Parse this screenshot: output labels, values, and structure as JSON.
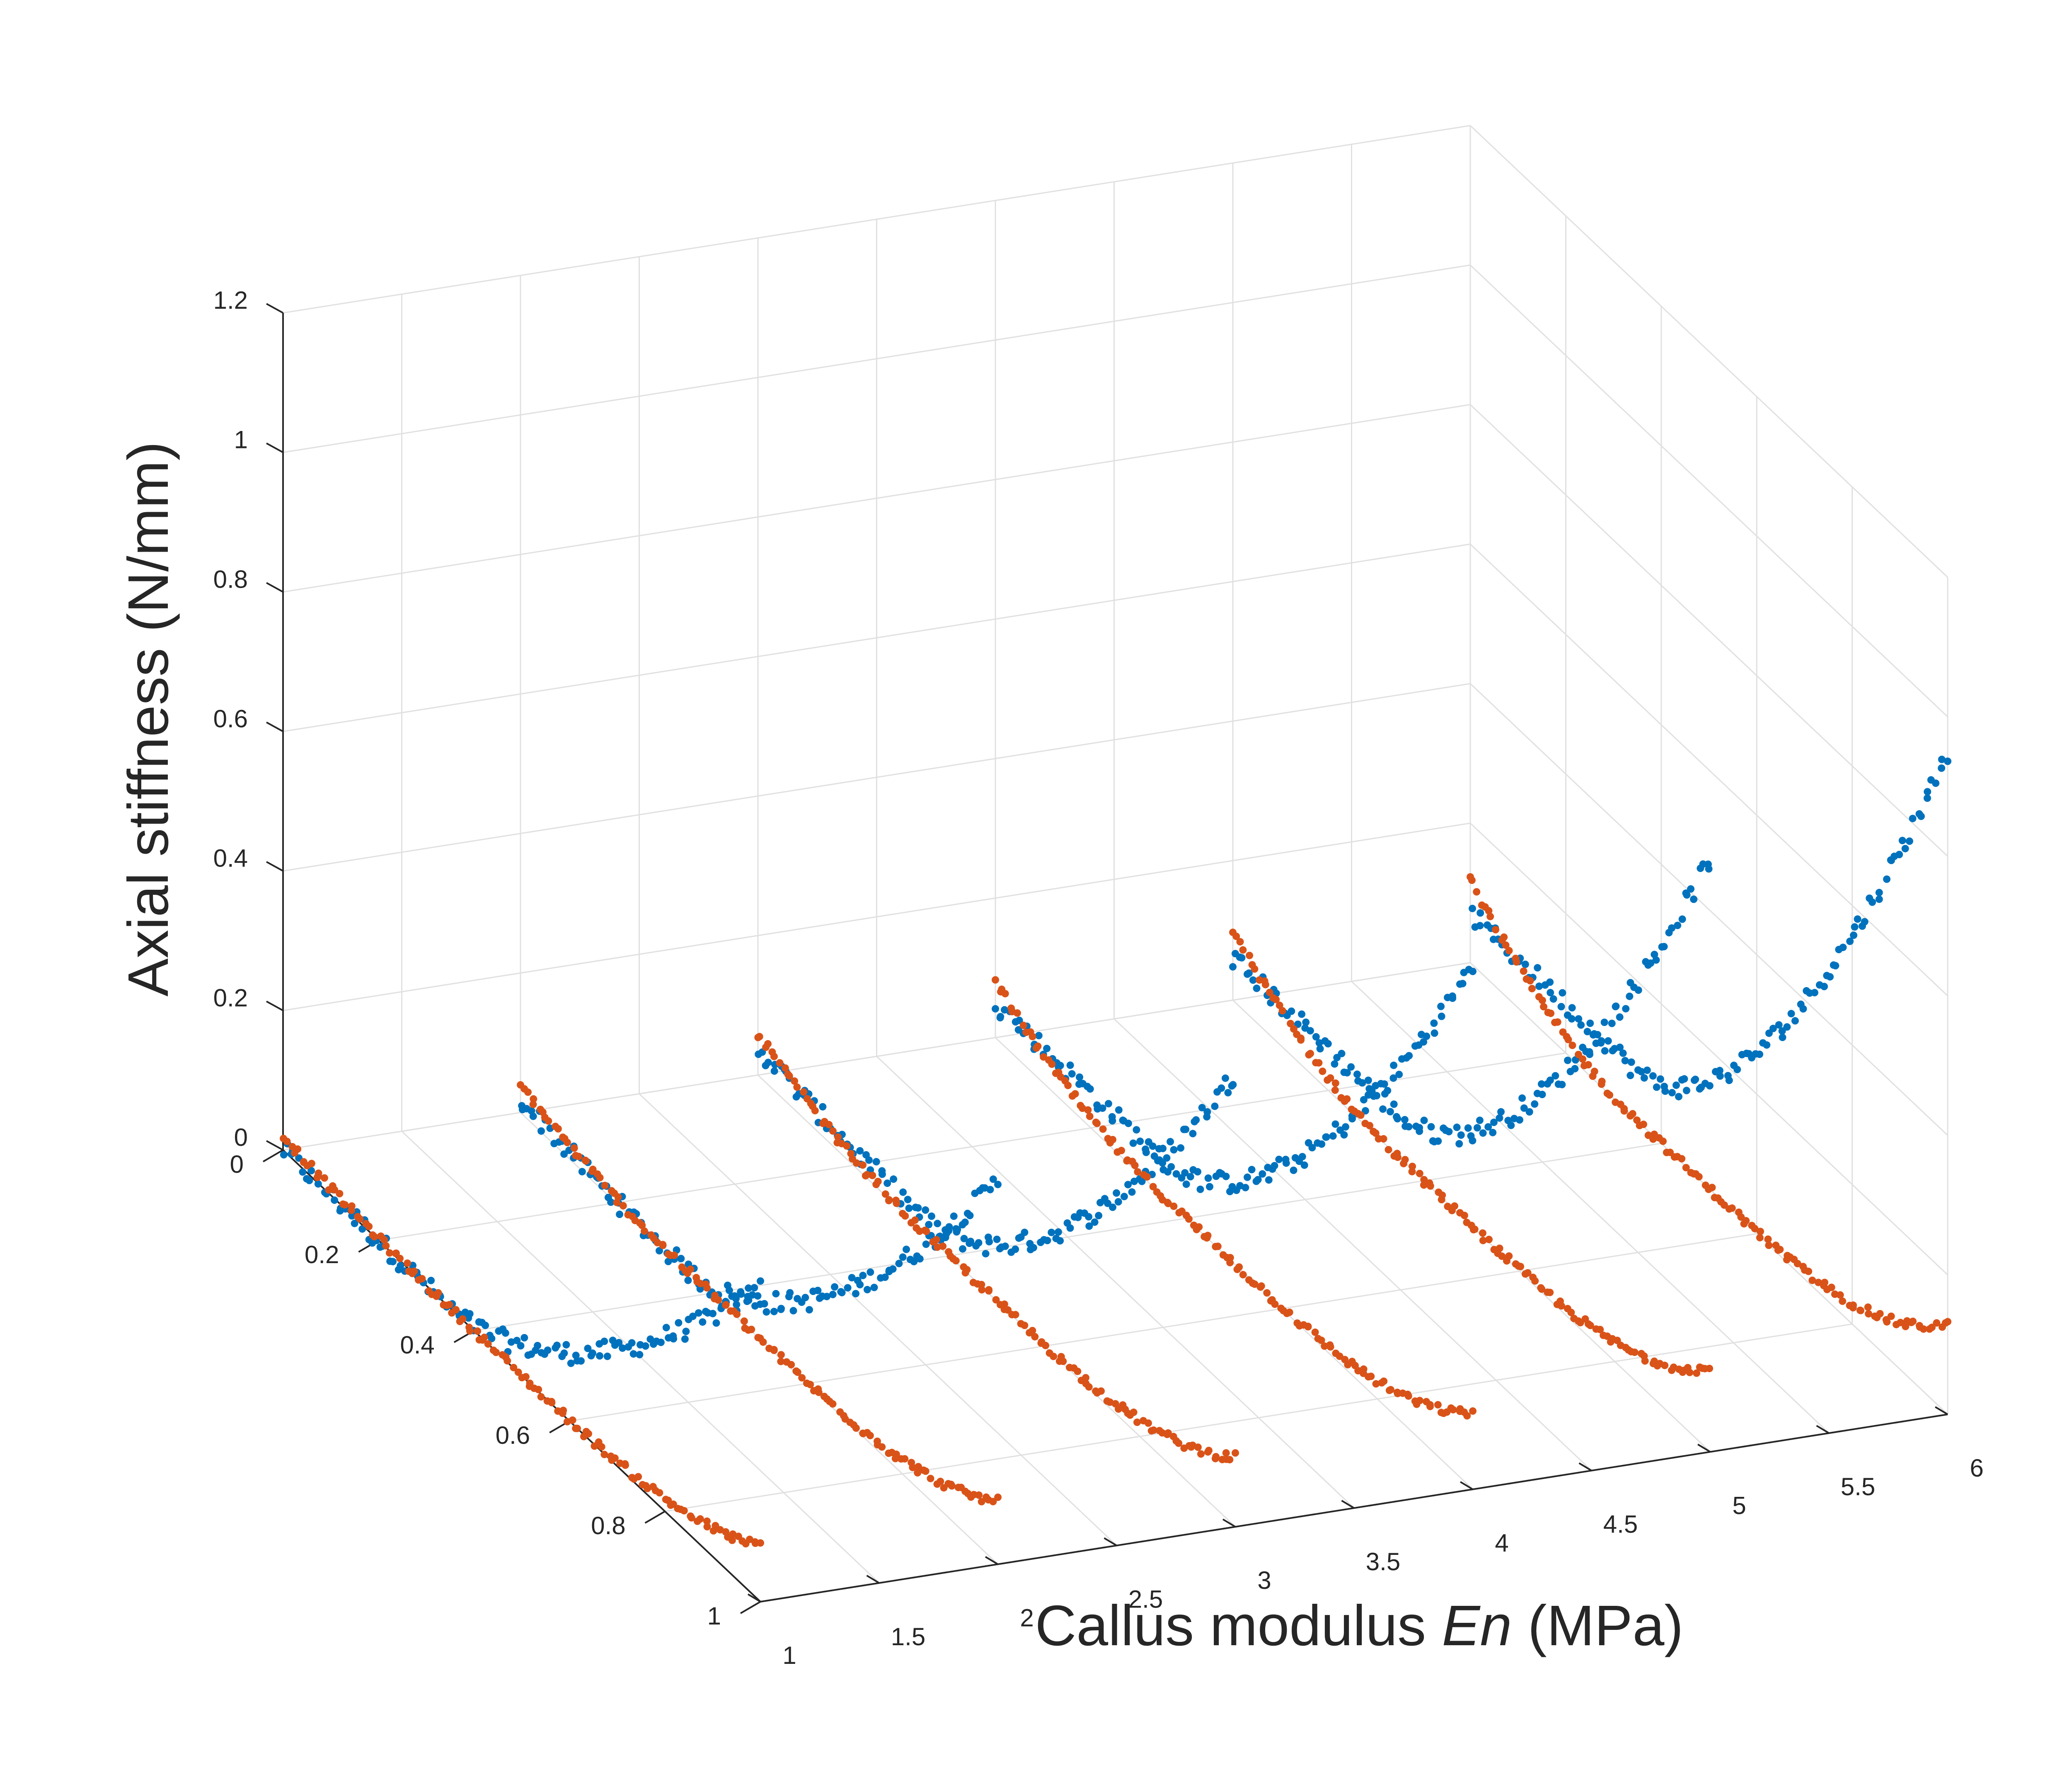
{
  "chart_data": {
    "type": "scatter",
    "title": "",
    "xlabel_prefix": "Callus modulus ",
    "xlabel_italic": "En",
    "xlabel_suffix": " (MPa)",
    "ylabel": "",
    "zlabel": "Axial stiffness (N/mm)",
    "xlim": [
      1,
      6
    ],
    "ylim": [
      0,
      1
    ],
    "zlim": [
      0,
      1.2
    ],
    "x_ticks": [
      "1",
      "1.5",
      "2",
      "2.5",
      "3",
      "3.5",
      "4",
      "4.5",
      "5",
      "5.5",
      "6"
    ],
    "y_ticks": [
      "0",
      "0.2",
      "0.4",
      "0.6",
      "0.8",
      "1"
    ],
    "z_ticks": [
      "0",
      "0.2",
      "0.4",
      "0.6",
      "0.8",
      "1",
      "1.2"
    ],
    "grid": true,
    "legend": null,
    "colors": {
      "series1": "#0072bd",
      "series2": "#d95319"
    },
    "series": [
      {
        "color": "#0072bd",
        "groups": [
          {
            "x": 1,
            "y_range": [
              0,
              1
            ],
            "z_start": 0.0,
            "z_min": 0.0,
            "z_end": 0.45
          },
          {
            "x": 2,
            "y_range": [
              0,
              1
            ],
            "z_start": 0.02,
            "z_min": 0.0,
            "z_end": 0.55
          },
          {
            "x": 3,
            "y_range": [
              0,
              1
            ],
            "z_start": 0.04,
            "z_min": 0.02,
            "z_end": 0.65
          },
          {
            "x": 4,
            "y_range": [
              0,
              1
            ],
            "z_start": 0.05,
            "z_min": 0.05,
            "z_end": 0.75
          },
          {
            "x": 5,
            "y_range": [
              0,
              1
            ],
            "z_start": 0.06,
            "z_min": 0.06,
            "z_end": 0.85
          },
          {
            "x": 6,
            "y_range": [
              0,
              1
            ],
            "z_start": 0.07,
            "z_min": 0.07,
            "z_end": 0.95
          }
        ]
      },
      {
        "color": "#d95319",
        "groups": [
          {
            "x": 1,
            "y_range": [
              0,
              1
            ],
            "z_start": 0.02,
            "z_min": 0.0,
            "z_end": 0.08
          },
          {
            "x": 2,
            "y_range": [
              0,
              1
            ],
            "z_start": 0.04,
            "z_min": 0.0,
            "z_end": 0.09
          },
          {
            "x": 3,
            "y_range": [
              0,
              1
            ],
            "z_start": 0.06,
            "z_min": 0.0,
            "z_end": 0.1
          },
          {
            "x": 4,
            "y_range": [
              0,
              1
            ],
            "z_start": 0.08,
            "z_min": 0.0,
            "z_end": 0.11
          },
          {
            "x": 5,
            "y_range": [
              0,
              1
            ],
            "z_start": 0.1,
            "z_min": 0.0,
            "z_end": 0.12
          },
          {
            "x": 6,
            "y_range": [
              0,
              1
            ],
            "z_start": 0.12,
            "z_min": 0.0,
            "z_end": 0.13
          }
        ]
      }
    ]
  }
}
